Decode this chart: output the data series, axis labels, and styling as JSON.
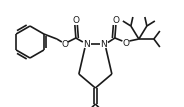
{
  "bg_color": "#ffffff",
  "line_color": "#1a1a1a",
  "line_width": 1.2,
  "figsize": [
    1.84,
    1.07
  ],
  "dpi": 100,
  "xlim": [
    0,
    184
  ],
  "ylim": [
    0,
    107
  ]
}
